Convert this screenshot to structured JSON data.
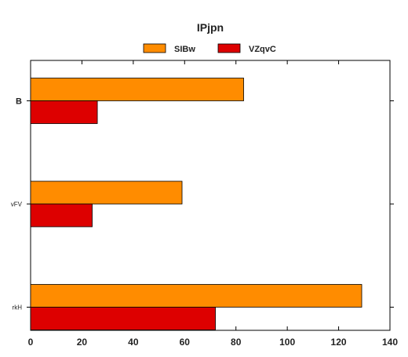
{
  "chart_data": {
    "type": "bar",
    "orientation": "horizontal",
    "title": "IPjpn",
    "categories": [
      "B",
      "vFV",
      "rkH"
    ],
    "series": [
      {
        "name": "SIBw",
        "values": [
          83,
          59,
          129
        ],
        "color": "#FF8C00"
      },
      {
        "name": "VZqvC",
        "values": [
          26,
          24,
          72
        ],
        "color": "#DD0000"
      }
    ],
    "xlim": [
      0,
      140
    ],
    "xticks": [
      0,
      20,
      40,
      60,
      80,
      100,
      120,
      140
    ],
    "grid": false,
    "legend_position": "top-center"
  }
}
